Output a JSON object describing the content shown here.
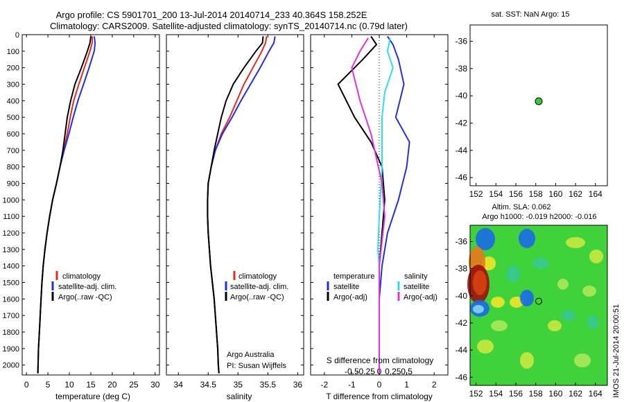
{
  "header": {
    "title_line1": "Argo profile: CS 5901701_200 13-Jul-2014 20140714_233 40.364S 158.252E",
    "title_line2": "Climatology: CARS2009. Satellite-adjusted climatology: synTS_20140714.nc (0.79d later)"
  },
  "colors": {
    "climatology": "#e8281e",
    "satellite": "#1f2ee6",
    "argo": "#000000",
    "argo_adj_salinity": "#e030e0",
    "satellite_salinity": "#29e0e8",
    "marker": "#3cc83c"
  },
  "footer_side": "IMOS 21-Jul-2014 20:00:51",
  "chart_data": [
    {
      "type": "line",
      "id": "temperature",
      "xlabel": "temperature (deg C)",
      "ylabel": "",
      "xlim": [
        -1,
        31
      ],
      "ylim": [
        2060,
        0
      ],
      "xticks": [
        0,
        5,
        10,
        15,
        20,
        25,
        30
      ],
      "yticks": [
        0,
        100,
        200,
        300,
        400,
        500,
        600,
        700,
        800,
        900,
        1000,
        1100,
        1200,
        1300,
        1400,
        1500,
        1600,
        1700,
        1800,
        1900,
        2000
      ],
      "legend": [
        "climatology",
        "satellite-adj. clim.",
        "Argo(..raw -QC)"
      ],
      "series": [
        {
          "name": "climatology",
          "color": "#e8281e",
          "points": [
            [
              15.3,
              10
            ],
            [
              15.3,
              50
            ],
            [
              14.8,
              100
            ],
            [
              13.5,
              200
            ],
            [
              12.2,
              300
            ],
            [
              11.0,
              400
            ],
            [
              10.2,
              500
            ],
            [
              9.5,
              600
            ],
            [
              8.7,
              700
            ],
            [
              7.8,
              800
            ],
            [
              7.0,
              900
            ],
            [
              6.1,
              1000
            ],
            [
              5.4,
              1100
            ],
            [
              4.8,
              1200
            ],
            [
              4.3,
              1300
            ],
            [
              3.9,
              1400
            ],
            [
              3.6,
              1500
            ],
            [
              3.4,
              1600
            ],
            [
              3.2,
              1700
            ],
            [
              3.0,
              1800
            ],
            [
              2.8,
              1900
            ],
            [
              2.7,
              2000
            ],
            [
              2.65,
              2050
            ]
          ]
        },
        {
          "name": "satellite-adj. clim.",
          "color": "#1f2ee6",
          "points": [
            [
              15.8,
              10
            ],
            [
              16.0,
              50
            ],
            [
              15.8,
              100
            ],
            [
              14.6,
              200
            ],
            [
              13.3,
              300
            ],
            [
              12.0,
              400
            ],
            [
              10.9,
              500
            ],
            [
              9.9,
              600
            ],
            [
              8.8,
              700
            ],
            [
              7.8,
              800
            ],
            [
              7.0,
              900
            ],
            [
              6.1,
              1000
            ],
            [
              5.4,
              1100
            ],
            [
              4.8,
              1200
            ],
            [
              4.3,
              1300
            ],
            [
              3.9,
              1400
            ],
            [
              3.6,
              1500
            ],
            [
              3.4,
              1600
            ],
            [
              3.2,
              1700
            ],
            [
              3.0,
              1800
            ],
            [
              2.8,
              1900
            ],
            [
              2.7,
              2000
            ],
            [
              2.65,
              2050
            ]
          ]
        },
        {
          "name": "Argo(..raw -QC)",
          "color": "#000000",
          "points": [
            [
              15.0,
              10
            ],
            [
              14.8,
              50
            ],
            [
              14.2,
              100
            ],
            [
              12.8,
              200
            ],
            [
              11.3,
              300
            ],
            [
              10.3,
              400
            ],
            [
              9.5,
              500
            ],
            [
              9.0,
              600
            ],
            [
              8.5,
              700
            ],
            [
              7.8,
              800
            ],
            [
              7.0,
              900
            ],
            [
              6.1,
              1000
            ],
            [
              5.4,
              1100
            ],
            [
              4.8,
              1200
            ],
            [
              4.3,
              1300
            ],
            [
              3.9,
              1400
            ],
            [
              3.6,
              1500
            ],
            [
              3.4,
              1600
            ],
            [
              3.2,
              1700
            ],
            [
              3.0,
              1800
            ],
            [
              2.8,
              1900
            ],
            [
              2.7,
              2000
            ],
            [
              2.65,
              2050
            ]
          ]
        }
      ]
    },
    {
      "type": "line",
      "id": "salinity",
      "xlabel": "salinity",
      "xlim": [
        33.8,
        36.1
      ],
      "ylim": [
        2060,
        0
      ],
      "xticks": [
        34,
        34.5,
        35,
        35.5,
        36
      ],
      "legend": [
        "climatology",
        "satellite-adj. clim.",
        "Argo(..raw -QC)"
      ],
      "annotation_line1": "Argo Australia",
      "annotation_line2": "PI: Susan Wijffels",
      "series": [
        {
          "name": "climatology",
          "color": "#e8281e",
          "points": [
            [
              35.48,
              10
            ],
            [
              35.46,
              50
            ],
            [
              35.4,
              100
            ],
            [
              35.25,
              200
            ],
            [
              35.1,
              300
            ],
            [
              34.98,
              400
            ],
            [
              34.86,
              500
            ],
            [
              34.72,
              600
            ],
            [
              34.62,
              700
            ],
            [
              34.55,
              800
            ],
            [
              34.5,
              900
            ],
            [
              34.49,
              1000
            ],
            [
              34.49,
              1100
            ],
            [
              34.5,
              1200
            ],
            [
              34.52,
              1300
            ],
            [
              34.54,
              1400
            ],
            [
              34.57,
              1500
            ],
            [
              34.6,
              1600
            ],
            [
              34.62,
              1700
            ],
            [
              34.64,
              1800
            ],
            [
              34.66,
              1900
            ],
            [
              34.67,
              2000
            ],
            [
              34.68,
              2050
            ]
          ]
        },
        {
          "name": "satellite-adj. clim.",
          "color": "#1f2ee6",
          "points": [
            [
              35.62,
              10
            ],
            [
              35.6,
              50
            ],
            [
              35.52,
              100
            ],
            [
              35.37,
              200
            ],
            [
              35.21,
              300
            ],
            [
              35.05,
              400
            ],
            [
              34.9,
              500
            ],
            [
              34.74,
              600
            ],
            [
              34.62,
              700
            ],
            [
              34.55,
              800
            ],
            [
              34.5,
              900
            ],
            [
              34.49,
              1000
            ],
            [
              34.49,
              1100
            ],
            [
              34.5,
              1200
            ],
            [
              34.52,
              1300
            ],
            [
              34.54,
              1400
            ],
            [
              34.57,
              1500
            ],
            [
              34.6,
              1600
            ],
            [
              34.62,
              1700
            ],
            [
              34.64,
              1800
            ],
            [
              34.66,
              1900
            ],
            [
              34.67,
              2000
            ],
            [
              34.68,
              2050
            ]
          ]
        },
        {
          "name": "Argo(..raw -QC)",
          "color": "#000000",
          "points": [
            [
              35.42,
              10
            ],
            [
              35.41,
              50
            ],
            [
              35.3,
              100
            ],
            [
              35.1,
              200
            ],
            [
              34.92,
              300
            ],
            [
              34.8,
              400
            ],
            [
              34.72,
              500
            ],
            [
              34.66,
              600
            ],
            [
              34.6,
              700
            ],
            [
              34.55,
              800
            ],
            [
              34.5,
              900
            ],
            [
              34.49,
              1000
            ],
            [
              34.49,
              1100
            ],
            [
              34.5,
              1200
            ],
            [
              34.52,
              1300
            ],
            [
              34.54,
              1400
            ],
            [
              34.57,
              1500
            ],
            [
              34.6,
              1600
            ],
            [
              34.62,
              1700
            ],
            [
              34.64,
              1800
            ],
            [
              34.66,
              1900
            ],
            [
              34.67,
              2000
            ],
            [
              34.68,
              2050
            ]
          ]
        }
      ]
    },
    {
      "type": "line",
      "id": "difference",
      "xlabel": "T difference from climatology",
      "xlabel_top": "S difference from climatology",
      "xlim": [
        -2.5,
        2.5
      ],
      "ylim": [
        2060,
        0
      ],
      "xticks": [
        -2,
        -1,
        0,
        1,
        2
      ],
      "s_ticks": [
        [
          "-0.5",
          -1
        ],
        [
          "-0.25",
          -0.5
        ],
        [
          "0",
          0
        ],
        [
          "0.25",
          0.5
        ],
        [
          "0.5",
          1
        ]
      ],
      "legend_heading_temperature": "temperature",
      "legend_heading_salinity": "salinity",
      "legend": [
        "satellite",
        "Argo(-adj)",
        "satellite",
        "Argo(-adj)"
      ],
      "series": [
        {
          "name": "satellite",
          "color": "#1f2ee6",
          "points": [
            [
              0.3,
              10
            ],
            [
              0.5,
              60
            ],
            [
              0.7,
              150
            ],
            [
              0.9,
              300
            ],
            [
              0.6,
              500
            ],
            [
              1.1,
              650
            ],
            [
              1.0,
              800
            ],
            [
              0.7,
              1000
            ],
            [
              0.3,
              1200
            ],
            [
              0.1,
              1400
            ],
            [
              0,
              1600
            ],
            [
              0,
              2050
            ]
          ]
        },
        {
          "name": "Argo(-adj)",
          "color": "#000000",
          "points": [
            [
              -0.3,
              10
            ],
            [
              -0.1,
              60
            ],
            [
              -0.6,
              150
            ],
            [
              -1.5,
              300
            ],
            [
              -0.9,
              500
            ],
            [
              -0.3,
              650
            ],
            [
              0.1,
              800
            ],
            [
              0.2,
              1000
            ],
            [
              0.1,
              1200
            ],
            [
              0,
              1400
            ],
            [
              0,
              1600
            ],
            [
              0,
              2050
            ]
          ]
        },
        {
          "name": "satellite",
          "color": "#29e0e8",
          "points": [
            [
              0.4,
              20
            ],
            [
              0.3,
              100
            ],
            [
              0.5,
              200
            ],
            [
              0.2,
              350
            ],
            [
              0.1,
              500
            ],
            [
              0.1,
              800
            ],
            [
              0.0,
              1100
            ],
            [
              -0.05,
              1300
            ],
            [
              0,
              1400
            ],
            [
              0,
              2050
            ]
          ]
        },
        {
          "name": "Argo(-adj)",
          "color": "#e030e0",
          "points": [
            [
              -0.4,
              20
            ],
            [
              -0.7,
              100
            ],
            [
              -1.0,
              200
            ],
            [
              -0.7,
              400
            ],
            [
              -0.3,
              600
            ],
            [
              0.1,
              900
            ],
            [
              0.2,
              1100
            ],
            [
              0,
              1400
            ],
            [
              0,
              2050
            ]
          ]
        }
      ]
    },
    {
      "type": "scatter",
      "id": "sst_map",
      "title": "sat. SST: NaN Argo: 15",
      "xlim": [
        151.4,
        165.2
      ],
      "ylim": [
        -46.6,
        -34.8
      ],
      "xticks": [
        152,
        154,
        156,
        158,
        160,
        162,
        164
      ],
      "yticks": [
        -36,
        -38,
        -40,
        -42,
        -44,
        -46
      ],
      "points": [
        [
          158.3,
          -40.4
        ]
      ]
    },
    {
      "type": "heatmap",
      "id": "sla_map",
      "title_line1": "Altim. SLA: 0.062",
      "title_line2": "Argo h1000: -0.019 h2000: -0.016",
      "xlim": [
        151.4,
        165.2
      ],
      "ylim": [
        -46.6,
        -34.8
      ],
      "xticks": [
        152,
        154,
        156,
        158,
        160,
        162,
        164
      ],
      "yticks": [
        -36,
        -38,
        -40,
        -42,
        -44,
        -46
      ],
      "points": [
        [
          158.3,
          -40.4
        ]
      ]
    }
  ]
}
